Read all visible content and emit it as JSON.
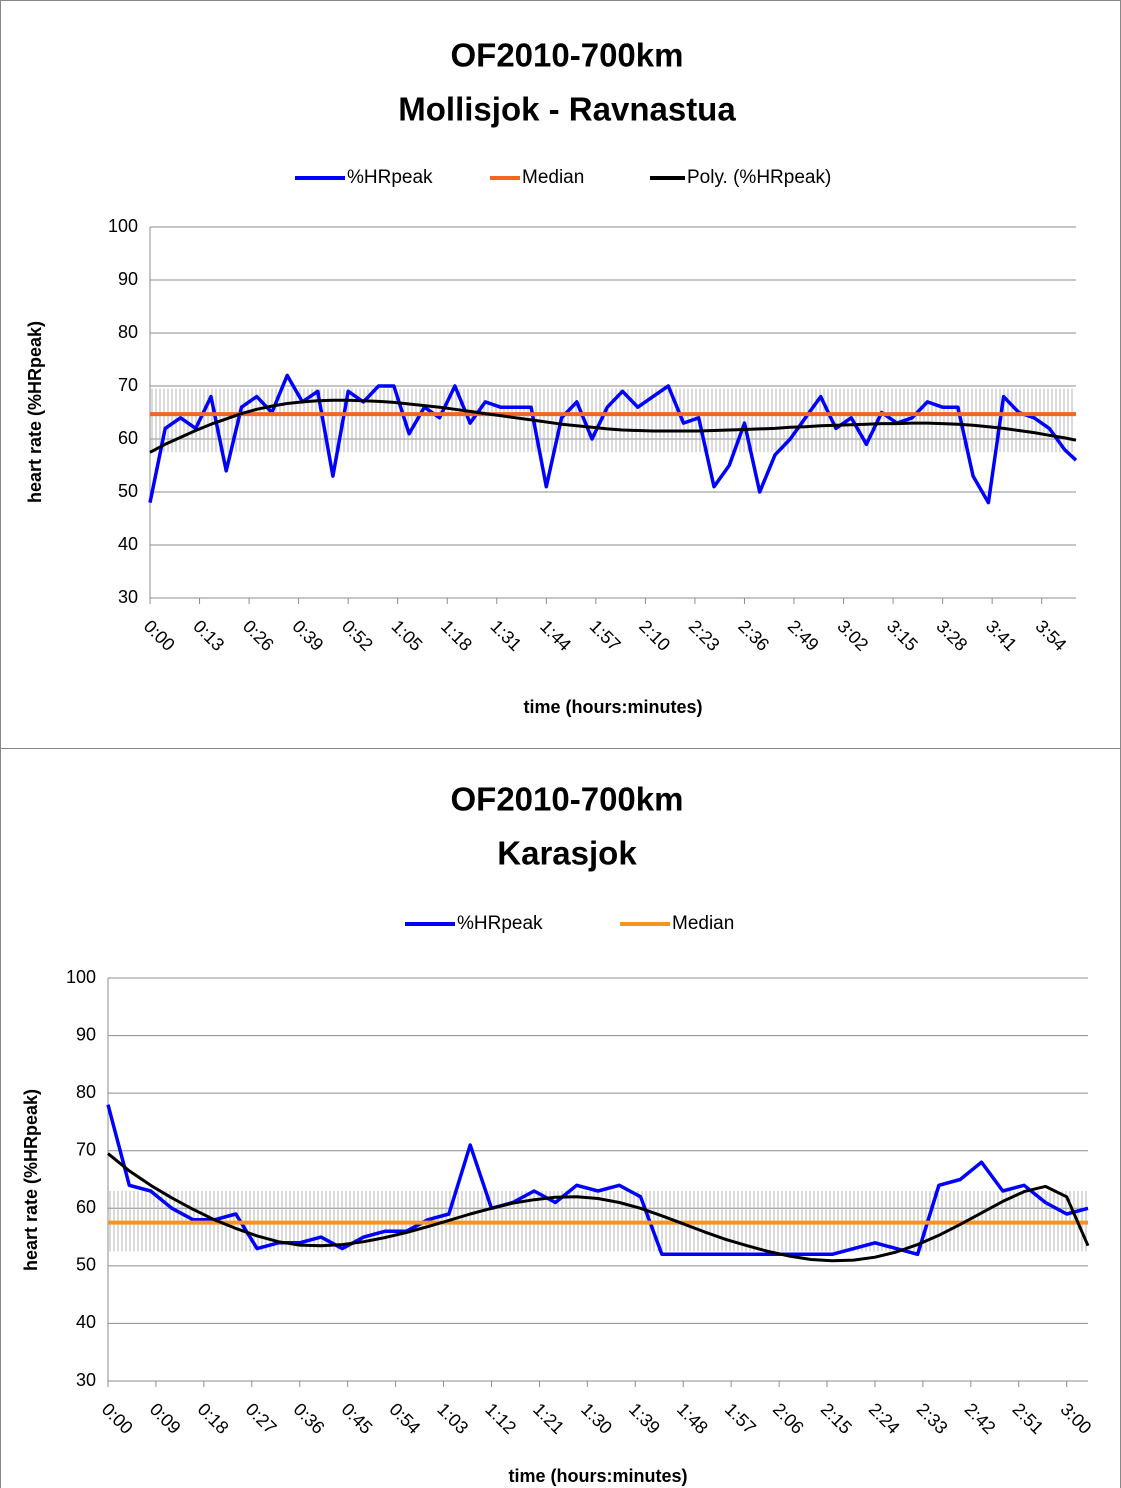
{
  "chart_data": [
    {
      "type": "line",
      "title": "OF2010-700km",
      "subtitle": "Mollisjok - Ravnastua",
      "x_label": "time (hours:minutes)",
      "y_label": "heart rate (%HRpeak)",
      "x": [
        0,
        4,
        8,
        12,
        16,
        20,
        24,
        28,
        32,
        36,
        40,
        44,
        48,
        52,
        56,
        60,
        64,
        68,
        72,
        76,
        80,
        84,
        88,
        92,
        96,
        100,
        104,
        108,
        112,
        116,
        120,
        124,
        128,
        132,
        136,
        140,
        144,
        148,
        152,
        156,
        160,
        164,
        168,
        172,
        176,
        180,
        184,
        188,
        192,
        196,
        200,
        204,
        208,
        212,
        216,
        220,
        224,
        228,
        232,
        236,
        240,
        243
      ],
      "xlim": [
        0,
        243
      ],
      "xticks": [
        {
          "value": 0,
          "label": "0:00"
        },
        {
          "value": 13,
          "label": "0:13"
        },
        {
          "value": 26,
          "label": "0:26"
        },
        {
          "value": 39,
          "label": "0:39"
        },
        {
          "value": 52,
          "label": "0:52"
        },
        {
          "value": 65,
          "label": "1:05"
        },
        {
          "value": 78,
          "label": "1:18"
        },
        {
          "value": 91,
          "label": "1:31"
        },
        {
          "value": 104,
          "label": "1:44"
        },
        {
          "value": 117,
          "label": "1:57"
        },
        {
          "value": 130,
          "label": "2:10"
        },
        {
          "value": 143,
          "label": "2:23"
        },
        {
          "value": 156,
          "label": "2:36"
        },
        {
          "value": 169,
          "label": "2:49"
        },
        {
          "value": 182,
          "label": "3:02"
        },
        {
          "value": 195,
          "label": "3:15"
        },
        {
          "value": 208,
          "label": "3:28"
        },
        {
          "value": 221,
          "label": "3:41"
        },
        {
          "value": 234,
          "label": "3:54"
        }
      ],
      "ylim": [
        30,
        100
      ],
      "yticks": [
        30,
        40,
        50,
        60,
        70,
        80,
        90,
        100
      ],
      "grid": true,
      "band": {
        "low": 57.5,
        "high": 69.5,
        "color": "#b4b4b4"
      },
      "series": [
        {
          "name": "%HRpeak",
          "color": "#0000ff",
          "values": [
            48,
            62,
            64,
            62,
            68,
            54,
            66,
            68,
            65,
            72,
            67,
            69,
            53,
            69,
            67,
            70,
            70,
            61,
            66,
            64,
            70,
            63,
            67,
            66,
            66,
            66,
            51,
            64,
            67,
            60,
            66,
            69,
            66,
            68,
            70,
            63,
            64,
            51,
            55,
            63,
            50,
            57,
            60,
            64,
            68,
            62,
            64,
            59,
            65,
            63,
            64,
            67,
            66,
            66,
            53,
            48,
            68,
            65,
            64,
            62,
            58,
            56
          ]
        },
        {
          "name": "Median",
          "color": "#f26522",
          "value": 64.7
        },
        {
          "name": "Poly. (%HRpeak)",
          "color": "#000000",
          "values": [
            57.5,
            59,
            60.3,
            61.6,
            62.8,
            63.8,
            64.8,
            65.6,
            66.2,
            66.7,
            67,
            67.2,
            67.3,
            67.3,
            67.2,
            67.1,
            66.9,
            66.6,
            66.3,
            66,
            65.6,
            65.2,
            64.8,
            64.4,
            64,
            63.6,
            63.2,
            62.8,
            62.5,
            62.2,
            61.9,
            61.7,
            61.6,
            61.5,
            61.5,
            61.5,
            61.5,
            61.6,
            61.7,
            61.8,
            61.9,
            62,
            62.2,
            62.3,
            62.5,
            62.6,
            62.7,
            62.8,
            62.9,
            62.9,
            63,
            63,
            62.9,
            62.8,
            62.6,
            62.3,
            62,
            61.6,
            61.2,
            60.7,
            60.2,
            59.8
          ]
        }
      ]
    },
    {
      "type": "line",
      "title": "OF2010-700km",
      "subtitle": "Karasjok",
      "x_label": "time (hours:minutes)",
      "y_label": "heart rate (%HRpeak)",
      "x": [
        0,
        4,
        8,
        12,
        16,
        20,
        24,
        28,
        32,
        36,
        40,
        44,
        48,
        52,
        56,
        60,
        64,
        68,
        72,
        76,
        80,
        84,
        88,
        92,
        96,
        100,
        104,
        108,
        112,
        116,
        120,
        124,
        128,
        132,
        136,
        140,
        144,
        148,
        152,
        156,
        160,
        164,
        168,
        172,
        176,
        180,
        184
      ],
      "xlim": [
        0,
        184
      ],
      "xticks": [
        {
          "value": 0,
          "label": "0:00"
        },
        {
          "value": 9,
          "label": "0:09"
        },
        {
          "value": 18,
          "label": "0:18"
        },
        {
          "value": 27,
          "label": "0:27"
        },
        {
          "value": 36,
          "label": "0:36"
        },
        {
          "value": 45,
          "label": "0:45"
        },
        {
          "value": 54,
          "label": "0:54"
        },
        {
          "value": 63,
          "label": "1:03"
        },
        {
          "value": 72,
          "label": "1:12"
        },
        {
          "value": 81,
          "label": "1:21"
        },
        {
          "value": 90,
          "label": "1:30"
        },
        {
          "value": 99,
          "label": "1:39"
        },
        {
          "value": 108,
          "label": "1:48"
        },
        {
          "value": 117,
          "label": "1:57"
        },
        {
          "value": 126,
          "label": "2:06"
        },
        {
          "value": 135,
          "label": "2:15"
        },
        {
          "value": 144,
          "label": "2:24"
        },
        {
          "value": 153,
          "label": "2:33"
        },
        {
          "value": 162,
          "label": "2:42"
        },
        {
          "value": 171,
          "label": "2:51"
        },
        {
          "value": 180,
          "label": "3:00"
        }
      ],
      "ylim": [
        30,
        100
      ],
      "yticks": [
        30,
        40,
        50,
        60,
        70,
        80,
        90,
        100
      ],
      "grid": true,
      "band": {
        "low": 52.5,
        "high": 63,
        "color": "#b4b4b4"
      },
      "series": [
        {
          "name": "%HRpeak",
          "color": "#0000ff",
          "values": [
            78,
            64,
            63,
            60,
            58,
            58,
            59,
            53,
            54,
            54,
            55,
            53,
            55,
            56,
            56,
            58,
            59,
            71,
            60,
            61,
            63,
            61,
            64,
            63,
            64,
            62,
            52,
            52,
            52,
            52,
            52,
            52,
            52,
            52,
            52,
            53,
            54,
            53,
            52,
            64,
            65,
            68,
            63,
            64,
            61,
            59,
            60
          ]
        },
        {
          "name": "Median",
          "color": "#f7941d",
          "value": 57.5
        },
        {
          "color": "#000000",
          "values": [
            69.5,
            66.5,
            64,
            61.8,
            59.8,
            58,
            56.5,
            55.2,
            54.2,
            53.6,
            53.5,
            53.7,
            54.2,
            54.9,
            55.8,
            56.8,
            57.9,
            59,
            60,
            60.9,
            61.5,
            61.9,
            62,
            61.7,
            61,
            60,
            58.7,
            57.3,
            55.9,
            54.6,
            53.5,
            52.5,
            51.7,
            51.1,
            50.9,
            51,
            51.5,
            52.4,
            53.7,
            55.3,
            57.2,
            59.2,
            61.2,
            62.9,
            63.8,
            62,
            53.5
          ]
        }
      ]
    }
  ]
}
